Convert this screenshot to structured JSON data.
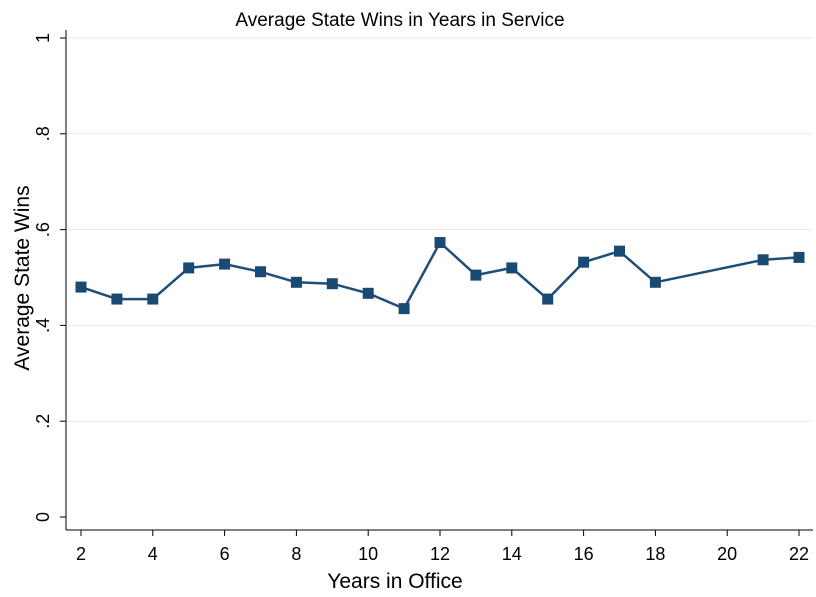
{
  "chart_data": {
    "type": "line",
    "title": "Average State Wins in Years in Service",
    "xlabel": "Years in Office",
    "ylabel": "Average State Wins",
    "xlim": [
      2,
      22
    ],
    "ylim": [
      0,
      1
    ],
    "x_ticks": [
      "2",
      "4",
      "6",
      "8",
      "10",
      "12",
      "14",
      "16",
      "18",
      "20",
      "22"
    ],
    "y_ticks": [
      "0",
      ".2",
      ".4",
      ".6",
      ".8",
      "1"
    ],
    "grid": true,
    "marker": "square",
    "line_color": "#1f4e79",
    "marker_color": "#1a4a72",
    "series": [
      {
        "x": [
          2,
          3,
          4,
          5,
          6,
          7,
          8,
          9,
          10,
          11,
          12,
          13,
          14,
          15,
          16,
          17,
          18,
          21,
          22
        ],
        "values": [
          0.48,
          0.455,
          0.455,
          0.52,
          0.528,
          0.512,
          0.49,
          0.487,
          0.467,
          0.435,
          0.573,
          0.505,
          0.52,
          0.455,
          0.532,
          0.555,
          0.49,
          0.537,
          0.542
        ]
      }
    ]
  }
}
